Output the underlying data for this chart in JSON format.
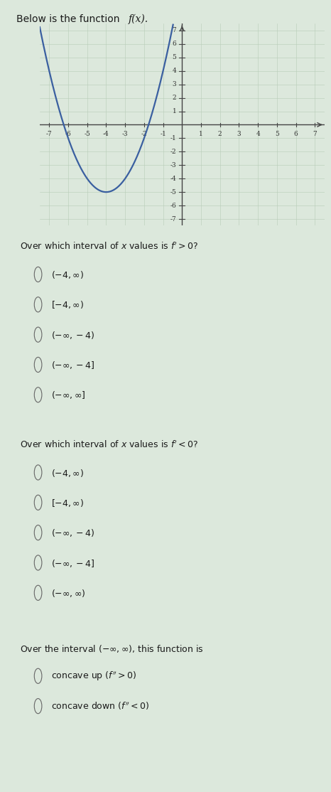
{
  "title_plain": "Below is the function ",
  "title_italic": "f(x).",
  "graph": {
    "xlim": [
      -7.5,
      7.5
    ],
    "ylim": [
      -7.5,
      7.5
    ],
    "xticks": [
      -7,
      -6,
      -5,
      -4,
      -3,
      -2,
      -1,
      1,
      2,
      3,
      4,
      5,
      6,
      7
    ],
    "yticks": [
      -7,
      -6,
      -5,
      -4,
      -3,
      -2,
      -1,
      1,
      2,
      3,
      4,
      5,
      6,
      7
    ],
    "curve_color": "#3a5fa0",
    "curve_lw": 1.6,
    "bg_color": "#dce8dc",
    "grid_color": "#b8ccb8",
    "axis_color": "#444444",
    "tick_color": "#333333"
  },
  "q1_question": "Over which interval of $x$ values is $f' > 0$?",
  "q1_options": [
    "$(-4, \\infty)$",
    "$[-4, \\infty)$",
    "$(-\\infty, -4)$",
    "$(-\\infty, -4]$",
    "$(-\\infty, \\infty]$"
  ],
  "q2_question": "Over which interval of $x$ values is $f' < 0$?",
  "q2_options": [
    "$(-4, \\infty)$",
    "$[-4, \\infty)$",
    "$(-\\infty, -4)$",
    "$(-\\infty, -4]$",
    "$(-\\infty, \\infty)$"
  ],
  "q3_question": "Over the interval $(-\\infty, \\infty)$, this function is",
  "q3_options": [
    "concave up $(f'' > 0)$",
    "concave down $(f'' < 0)$"
  ],
  "bg_page": "#dce8dc",
  "text_color": "#1a1a1a",
  "radio_color": "#666666",
  "font_size_question": 9,
  "font_size_option": 9
}
